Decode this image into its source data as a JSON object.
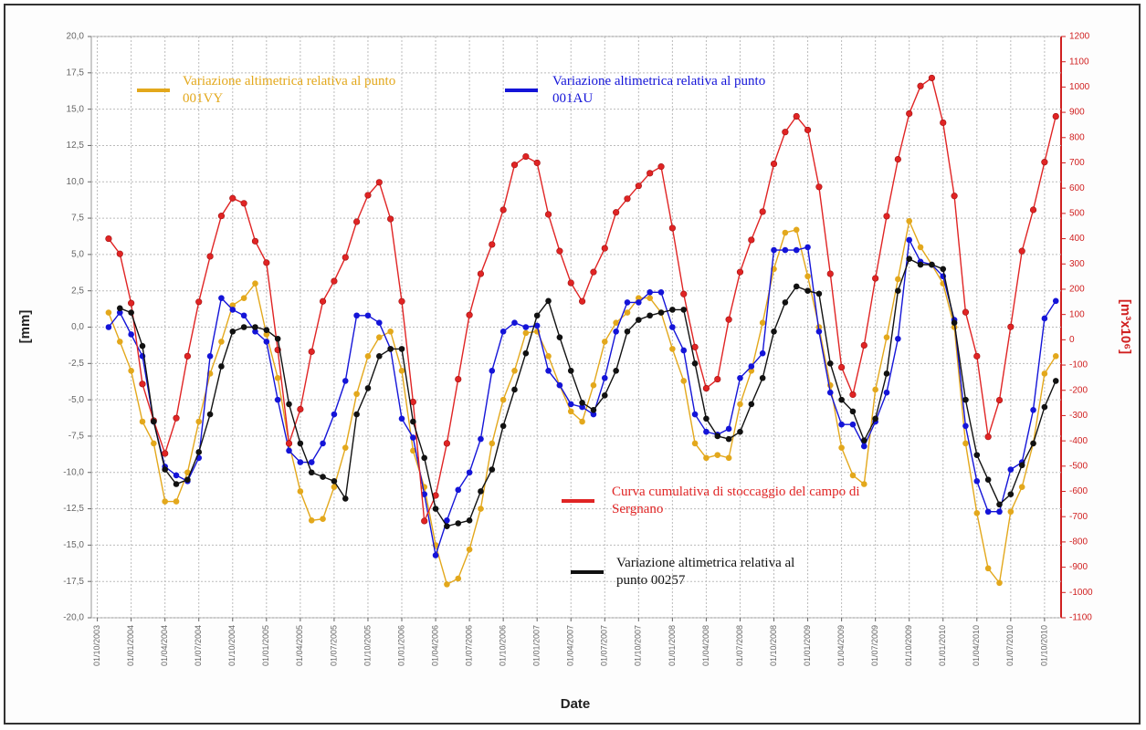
{
  "chart_data": {
    "type": "line",
    "x_label": "Date",
    "y_label": "[mm]",
    "y2_label": "[m³x10⁶]",
    "x": [
      "01/11/2003",
      "01/12/2003",
      "01/01/2004",
      "01/02/2004",
      "01/03/2004",
      "01/04/2004",
      "01/05/2004",
      "01/06/2004",
      "01/07/2004",
      "01/08/2004",
      "01/09/2004",
      "01/10/2004",
      "01/11/2004",
      "01/12/2004",
      "01/01/2005",
      "01/02/2005",
      "01/03/2005",
      "01/04/2005",
      "01/05/2005",
      "01/06/2005",
      "01/07/2005",
      "01/08/2005",
      "01/09/2005",
      "01/10/2005",
      "01/11/2005",
      "01/12/2005",
      "01/01/2006",
      "01/02/2006",
      "01/03/2006",
      "01/04/2006",
      "01/05/2006",
      "01/06/2006",
      "01/07/2006",
      "01/08/2006",
      "01/09/2006",
      "01/10/2006",
      "01/11/2006",
      "01/12/2006",
      "01/01/2007",
      "01/02/2007",
      "01/03/2007",
      "01/04/2007",
      "01/05/2007",
      "01/06/2007",
      "01/07/2007",
      "01/08/2007",
      "01/09/2007",
      "01/10/2007",
      "01/11/2007",
      "01/12/2007",
      "01/01/2008",
      "01/02/2008",
      "01/03/2008",
      "01/04/2008",
      "01/05/2008",
      "01/06/2008",
      "01/07/2008",
      "01/08/2008",
      "01/09/2008",
      "01/10/2008",
      "01/11/2008",
      "01/12/2008",
      "01/01/2009",
      "01/02/2009",
      "01/03/2009",
      "01/04/2009",
      "01/05/2009",
      "01/06/2009",
      "01/07/2009",
      "01/08/2009",
      "01/09/2009",
      "01/10/2009",
      "01/11/2009",
      "01/12/2009",
      "01/01/2010",
      "01/02/2010",
      "01/03/2010",
      "01/04/2010",
      "01/05/2010",
      "01/06/2010",
      "01/07/2010",
      "01/08/2010",
      "01/09/2010",
      "01/10/2010",
      "01/11/2010"
    ],
    "xlim": [
      "15/09/2003",
      "15/11/2010"
    ],
    "xticks": [
      "01/10/2003",
      "01/01/2004",
      "01/04/2004",
      "01/07/2004",
      "01/10/2004",
      "01/01/2005",
      "01/04/2005",
      "01/07/2005",
      "01/10/2005",
      "01/01/2006",
      "01/04/2006",
      "01/07/2006",
      "01/10/2006",
      "01/01/2007",
      "01/04/2007",
      "01/07/2007",
      "01/10/2007",
      "01/01/2008",
      "01/04/2008",
      "01/07/2008",
      "01/10/2008",
      "01/01/2009",
      "01/04/2009",
      "01/07/2009",
      "01/10/2009",
      "01/01/2010",
      "01/04/2010",
      "01/07/2010",
      "01/10/2010"
    ],
    "ylim": [
      -20,
      20
    ],
    "yticks": [
      {
        "value": -20,
        "label": "-20,0"
      },
      {
        "value": -17.5,
        "label": "-17,5"
      },
      {
        "value": -15,
        "label": "-15,0"
      },
      {
        "value": -12.5,
        "label": "-12,5"
      },
      {
        "value": -10,
        "label": "-10,0"
      },
      {
        "value": -7.5,
        "label": "-7,5"
      },
      {
        "value": -5,
        "label": "-5,0"
      },
      {
        "value": -2.5,
        "label": "-2,5"
      },
      {
        "value": 0,
        "label": "0,0"
      },
      {
        "value": 2.5,
        "label": "2,5"
      },
      {
        "value": 5,
        "label": "5,0"
      },
      {
        "value": 7.5,
        "label": "7,5"
      },
      {
        "value": 10,
        "label": "10,0"
      },
      {
        "value": 12.5,
        "label": "12,5"
      },
      {
        "value": 15,
        "label": "15,0"
      },
      {
        "value": 17.5,
        "label": "17,5"
      },
      {
        "value": 20,
        "label": "20,0"
      }
    ],
    "y2lim": [
      -1100,
      1200
    ],
    "y2ticks": [
      -1100,
      -1000,
      -900,
      -800,
      -700,
      -600,
      -500,
      -400,
      -300,
      -200,
      -100,
      0,
      100,
      200,
      300,
      400,
      500,
      600,
      700,
      800,
      900,
      1000,
      1100,
      1200
    ],
    "grid": true,
    "series": [
      {
        "name": "Variazione altimetrica relativa al punto 001VY",
        "color": "#e3a81c",
        "values": [
          1,
          -1,
          -3,
          -6.5,
          -8,
          -12,
          -12,
          -10,
          -6.5,
          -3.2,
          -1,
          1.5,
          2,
          3,
          -0.5,
          -3.5,
          -8,
          -11.3,
          -13.3,
          -13.2,
          -11,
          -8.3,
          -4.6,
          -2,
          -0.7,
          -0.3,
          -3,
          -8.5,
          -11,
          -15,
          -17.7,
          -17.3,
          -15.3,
          -12.5,
          -8,
          -5,
          -3,
          -0.4,
          -0.3,
          -2,
          -4,
          -5.8,
          -6.5,
          -4,
          -1,
          0.3,
          1,
          2,
          2,
          1,
          -1.5,
          -3.7,
          -8,
          -9,
          -8.8,
          -9,
          -5.3,
          -3,
          0.3,
          4,
          6.5,
          6.7,
          3.5,
          0,
          -4,
          -8.3,
          -10.2,
          -10.8,
          -4.3,
          -0.7,
          3.3,
          7.3,
          5.5,
          4.3,
          3,
          0,
          -8,
          -12.8,
          -16.6,
          -17.6,
          -12.7,
          -11,
          -8,
          -3.2,
          -2
        ]
      },
      {
        "name": "Variazione altimetrica relativa al punto 001AU",
        "color": "#1414d8",
        "values": [
          0,
          1,
          -0.5,
          -2,
          -6.5,
          -9.6,
          -10.2,
          -10.6,
          -9,
          -2,
          2,
          1.2,
          0.8,
          -0.3,
          -1,
          -5,
          -8.5,
          -9.3,
          -9.3,
          -8,
          -6,
          -3.7,
          0.8,
          0.8,
          0.3,
          -1.5,
          -6.3,
          -7.6,
          -11.5,
          -15.7,
          -13.3,
          -11.2,
          -10,
          -7.7,
          -3,
          -0.3,
          0.3,
          0,
          0.1,
          -3,
          -4,
          -5.3,
          -5.5,
          -6,
          -3.5,
          -0.3,
          1.7,
          1.7,
          2.4,
          2.4,
          0,
          -1.6,
          -6,
          -7.2,
          -7.4,
          -7,
          -3.5,
          -2.7,
          -1.8,
          5.3,
          5.3,
          5.3,
          5.5,
          -0.3,
          -4.5,
          -6.7,
          -6.7,
          -8.2,
          -6.5,
          -4.5,
          -0.8,
          6,
          4.5,
          4.3,
          3.5,
          0.5,
          -6.8,
          -10.6,
          -12.7,
          -12.7,
          -9.8,
          -9.3,
          -5.7,
          0.6,
          1.8
        ]
      },
      {
        "name": "Curva cumulativa di stoccaggio del campo di Sergnano",
        "color": "#e02424",
        "axis": "y2",
        "values": [
          400,
          340,
          145,
          -175,
          -320,
          -450,
          -310,
          -65,
          150,
          330,
          490,
          560,
          540,
          390,
          305,
          -40,
          -410,
          -275,
          -47,
          152,
          232,
          326,
          467,
          572,
          623,
          478,
          152,
          -246,
          -717,
          -616,
          -410,
          -156,
          98,
          261,
          377,
          514,
          692,
          725,
          700,
          496,
          351,
          225,
          152,
          268,
          362,
          504,
          558,
          609,
          659,
          685,
          442,
          181,
          -29,
          -192,
          -156,
          80,
          268,
          395,
          507,
          696,
          822,
          884,
          830,
          605,
          261,
          -109,
          -217,
          -22,
          243,
          489,
          714,
          895,
          1004,
          1036,
          859,
          569,
          109,
          -65,
          -384,
          -239,
          51,
          351,
          514,
          703,
          884
        ]
      },
      {
        "name": "Variazione altimetrica relativa al punto 00257",
        "color": "#111111",
        "values": [
          null,
          1.3,
          1,
          -1.3,
          -6.5,
          -9.8,
          -10.8,
          -10.5,
          -8.6,
          -6,
          -2.7,
          -0.3,
          0,
          0,
          -0.2,
          -0.8,
          -5.3,
          -8,
          -10,
          -10.3,
          -10.6,
          -11.8,
          -6,
          -4.2,
          -2,
          -1.5,
          -1.5,
          -6.5,
          -9,
          -12.5,
          -13.7,
          -13.5,
          -13.3,
          -11.3,
          -9.8,
          -6.8,
          -4.3,
          -1.8,
          0.8,
          1.8,
          -0.7,
          -3,
          -5.2,
          -5.7,
          -4.7,
          -3,
          -0.3,
          0.5,
          0.8,
          1,
          1.2,
          1.2,
          -2.5,
          -6.3,
          -7.5,
          -7.7,
          -7.2,
          -5.3,
          -3.5,
          -0.3,
          1.7,
          2.8,
          2.5,
          2.3,
          -2.5,
          -5,
          -5.8,
          -7.8,
          -6.3,
          -3.2,
          2.5,
          4.7,
          4.3,
          4.3,
          4,
          0.3,
          -5,
          -8.8,
          -10.5,
          -12.2,
          -11.5,
          -9.5,
          -8,
          -5.5,
          -3.7
        ]
      }
    ]
  }
}
